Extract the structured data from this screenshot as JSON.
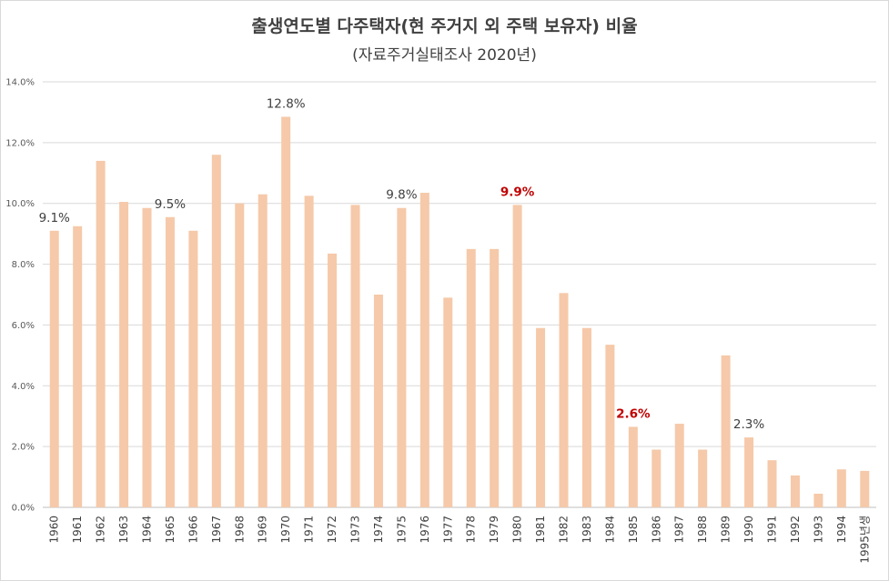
{
  "chart_data": {
    "type": "bar",
    "title": "출생연도별 다주택자(현 주거지 외 주택 보유자) 비율",
    "subtitle": "(자료주거실태조사 2020년)",
    "xlabel": "",
    "ylabel": "",
    "ylim": [
      0,
      14
    ],
    "yticks": [
      "0.0%",
      "2.0%",
      "4.0%",
      "6.0%",
      "8.0%",
      "10.0%",
      "12.0%",
      "14.0%"
    ],
    "grid": true,
    "categories": [
      "1960",
      "1961",
      "1962",
      "1963",
      "1964",
      "1965",
      "1966",
      "1967",
      "1968",
      "1969",
      "1970",
      "1971",
      "1972",
      "1973",
      "1974",
      "1975",
      "1976",
      "1977",
      "1978",
      "1979",
      "1980",
      "1981",
      "1982",
      "1983",
      "1984",
      "1985",
      "1986",
      "1987",
      "1988",
      "1989",
      "1990",
      "1991",
      "1992",
      "1993",
      "1994",
      "1995년생"
    ],
    "values": [
      9.1,
      9.25,
      11.4,
      10.05,
      9.85,
      9.55,
      9.1,
      11.6,
      10.0,
      10.3,
      12.85,
      10.25,
      8.35,
      9.95,
      7.0,
      9.85,
      10.35,
      6.9,
      8.5,
      8.5,
      9.95,
      5.9,
      7.05,
      5.9,
      5.35,
      2.65,
      1.9,
      2.75,
      1.9,
      5.0,
      2.3,
      1.55,
      1.05,
      0.45,
      1.25,
      1.2
    ],
    "bar_color": "#f5c9a9",
    "annotations": [
      {
        "index": 0,
        "text": "9.1%",
        "highlight": false
      },
      {
        "index": 5,
        "text": "9.5%",
        "highlight": false
      },
      {
        "index": 10,
        "text": "12.8%",
        "highlight": false
      },
      {
        "index": 15,
        "text": "9.8%",
        "highlight": false
      },
      {
        "index": 20,
        "text": "9.9%",
        "highlight": true
      },
      {
        "index": 25,
        "text": "2.6%",
        "highlight": true
      },
      {
        "index": 30,
        "text": "2.3%",
        "highlight": false
      }
    ],
    "highlight_color": "#c00000"
  }
}
